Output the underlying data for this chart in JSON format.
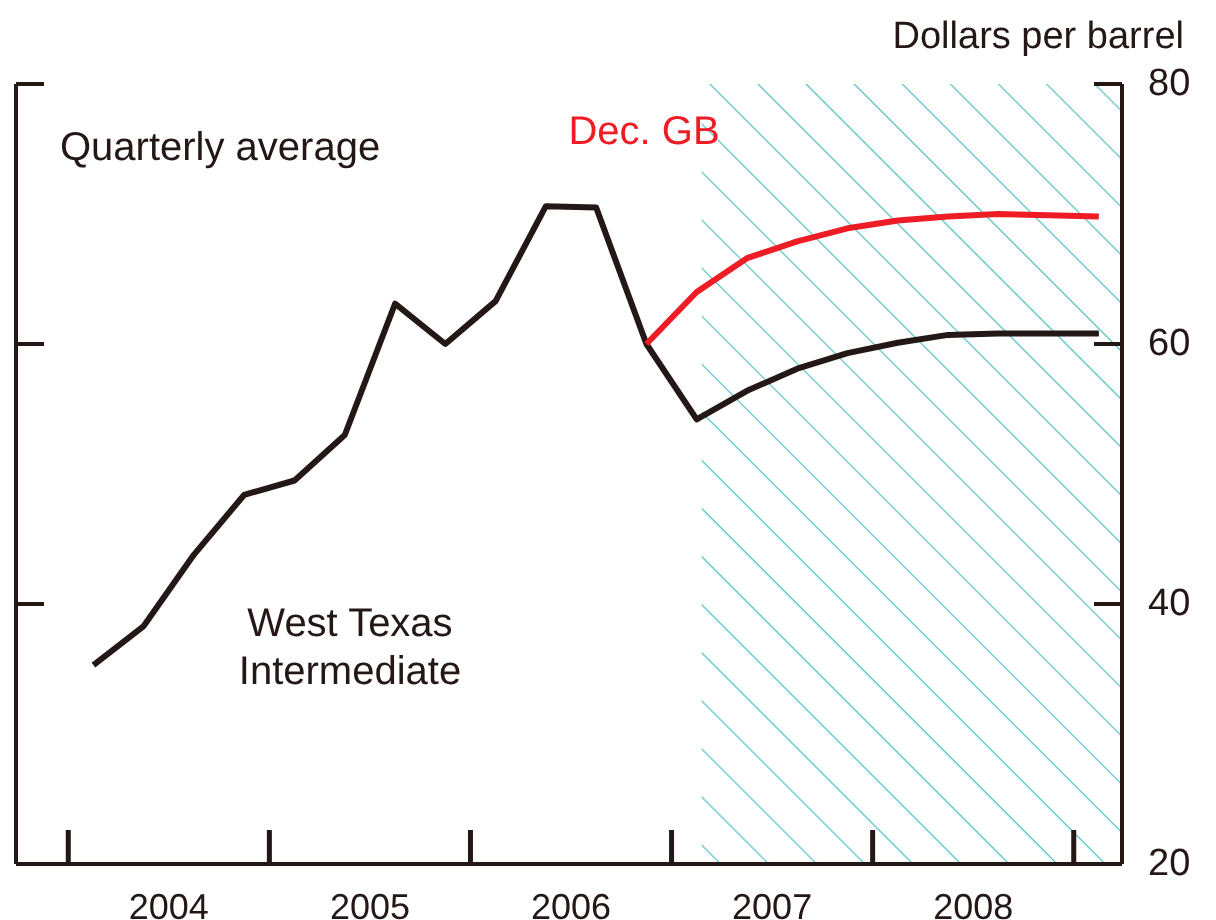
{
  "chart_data": {
    "type": "line",
    "ylabel": "Dollars per barrel",
    "annotations": [
      "Quarterly average"
    ],
    "xlim": [
      2003.74,
      2009.24
    ],
    "xticks": [
      {
        "value": 2004.5,
        "label": "2004"
      },
      {
        "value": 2005.5,
        "label": "2005"
      },
      {
        "value": 2006.5,
        "label": "2006"
      },
      {
        "value": 2007.5,
        "label": "2007"
      },
      {
        "value": 2008.5,
        "label": "2008"
      }
    ],
    "ylim": [
      20,
      80
    ],
    "yticks": [
      20,
      40,
      60,
      80
    ],
    "grid": false,
    "line_style": "solid",
    "marker": "none",
    "bands": [
      {
        "axis": "x",
        "from": 2007.15,
        "to": 2009.24,
        "color": "#4fc1c1"
      }
    ],
    "series": [
      {
        "name": "West Texas Intermediate",
        "color": "#231815",
        "x": [
          2004.125,
          2004.375,
          2004.625,
          2004.875,
          2005.125,
          2005.375,
          2005.625,
          2005.875,
          2006.125,
          2006.375,
          2006.625,
          2006.875,
          2007.125,
          2007.375,
          2007.625,
          2007.875,
          2008.125,
          2008.375,
          2008.625,
          2008.875,
          2009.125
        ],
        "values": [
          35.3,
          38.3,
          43.8,
          48.4,
          49.5,
          53.0,
          63.1,
          60.0,
          63.3,
          70.6,
          70.5,
          60.0,
          54.2,
          56.4,
          58.1,
          59.3,
          60.1,
          60.7,
          60.8,
          60.8,
          60.8
        ]
      },
      {
        "name": "Dec. GB",
        "color": "#ee1c25",
        "x": [
          2006.875,
          2007.125,
          2007.375,
          2007.625,
          2007.875,
          2008.125,
          2008.375,
          2008.625,
          2008.875,
          2009.125
        ],
        "values": [
          60.0,
          64.0,
          66.6,
          67.9,
          68.9,
          69.5,
          69.8,
          70.0,
          69.9,
          69.8
        ]
      }
    ]
  }
}
